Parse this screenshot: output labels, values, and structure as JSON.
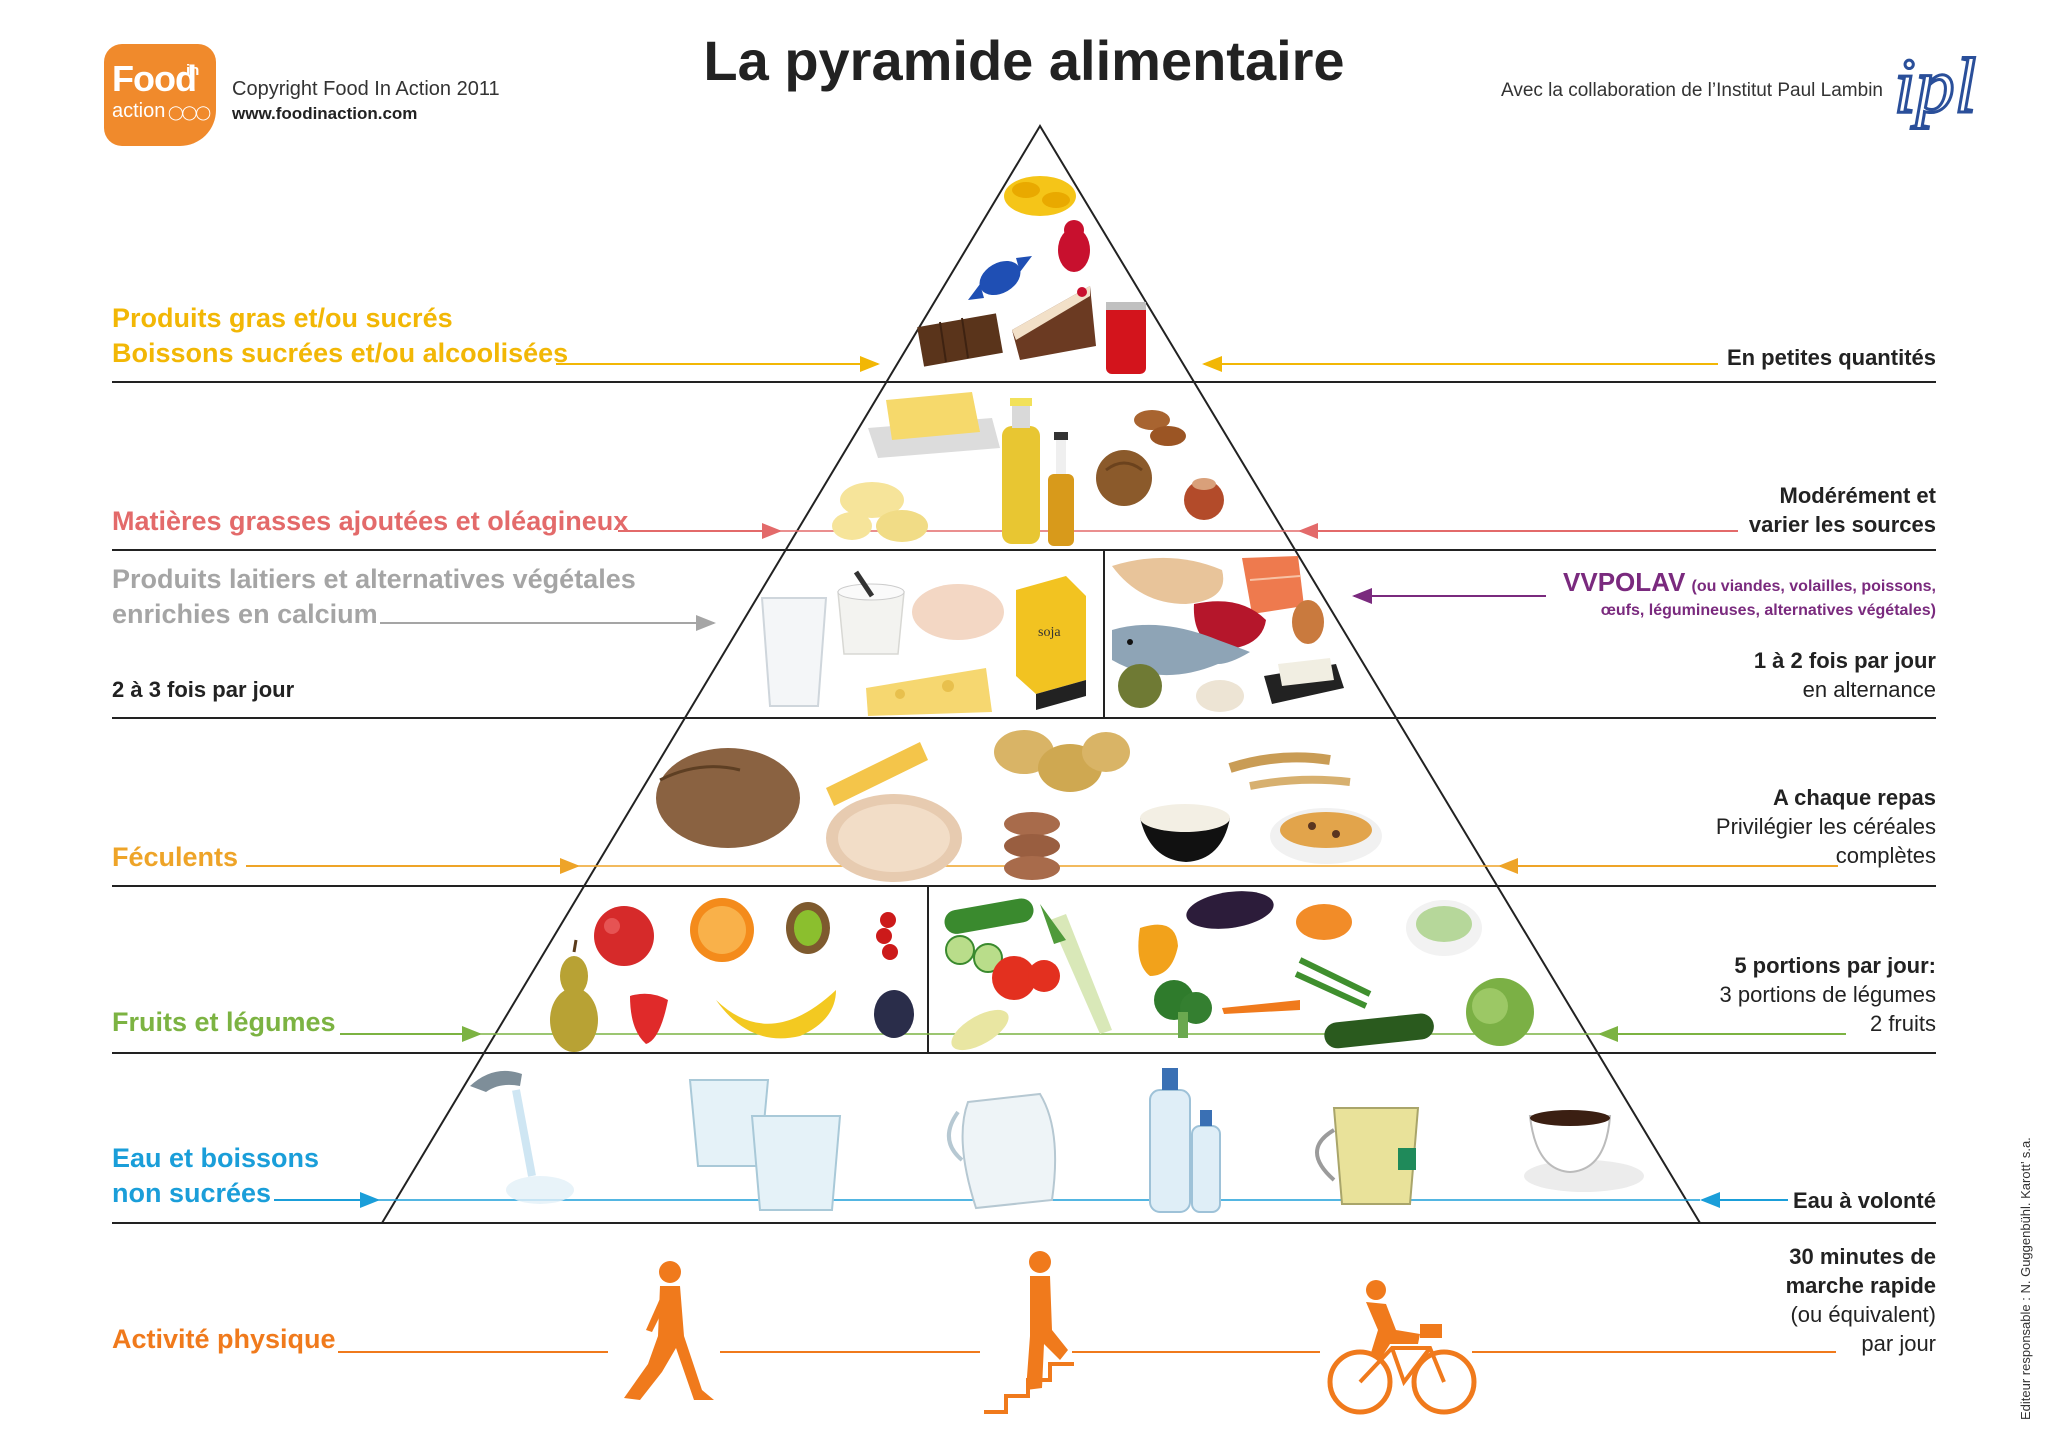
{
  "header": {
    "title": "La pyramide alimentaire",
    "copyright": "Copyright Food In Action 2011",
    "website": "www.foodinaction.com",
    "collaboration": "Avec la collaboration de l’Institut Paul Lambin"
  },
  "logos": {
    "food_in_action": {
      "word1": "Food",
      "word2": "in",
      "word3": "action",
      "color": "#f08a2c"
    },
    "ipl": {
      "text": "ipl",
      "color": "#2a4f9a"
    }
  },
  "tiers": [
    {
      "left_lines": [
        "Produits gras et/ou sucrés",
        "Boissons sucrées et/ou alcoolisées"
      ],
      "left_color": "#f2b705",
      "right_lines": [
        {
          "text": "En petites quantités",
          "bold": true
        }
      ],
      "foods": [
        "chips",
        "gummy-bear",
        "wrapped-candy",
        "chocolate",
        "cake-slice",
        "soda-can"
      ]
    },
    {
      "left_lines": [
        "Matières grasses ajoutées et oléagineux"
      ],
      "left_color": "#e36a6a",
      "right_lines": [
        {
          "text": "Modérément et",
          "bold": true
        },
        {
          "text": "varier les sources",
          "bold": true
        }
      ],
      "foods": [
        "butter",
        "oil-bottle",
        "vinegar-bottle",
        "almonds",
        "walnut",
        "hazelnut",
        "butter-curls"
      ]
    },
    {
      "left_lines": [
        "Produits laitiers et alternatives végétales",
        "enrichies en calcium"
      ],
      "left_color": "#a5a5a5",
      "left_extra": "2 à 3 fois par jour",
      "right_title": "VVPOLAV",
      "right_title_sub": "(ou viandes, volailles, poissons,",
      "right_title_sub2": "œufs, légumineuses, alternatives végétales)",
      "right_title_color": "#7a2a7e",
      "right_lines": [
        {
          "text": "1 à 2 fois par jour",
          "bold": true
        },
        {
          "text": "en alternance",
          "bold": false
        }
      ],
      "foods": [
        "milk-glass",
        "yogurt",
        "cheese",
        "soy-carton",
        "chicken",
        "salmon",
        "steak",
        "fish",
        "egg",
        "lentils",
        "beans",
        "tofu"
      ],
      "soja_label": "soja"
    },
    {
      "left_lines": [
        "Féculents"
      ],
      "left_color": "#eea428",
      "right_lines": [
        {
          "text": "A chaque repas",
          "bold": true
        },
        {
          "text": "Privilégier les céréales",
          "bold": false
        },
        {
          "text": "complètes",
          "bold": false
        }
      ],
      "foods": [
        "bread-loaf",
        "pasta",
        "potatoes",
        "grain-cakes",
        "rice-bowl",
        "wheat",
        "cereal-flakes"
      ]
    },
    {
      "left_lines": [
        "Fruits et légumes"
      ],
      "left_color": "#7cb342",
      "right_lines": [
        {
          "text": "5 portions par jour:",
          "bold": true
        },
        {
          "text": "3 portions de légumes",
          "bold": false
        },
        {
          "text": "2 fruits",
          "bold": false
        }
      ],
      "foods": [
        "apple",
        "orange",
        "kiwi",
        "redcurrant",
        "pear",
        "strawberry",
        "banana",
        "plum",
        "cucumber",
        "leek",
        "pepper",
        "eggplant",
        "tomato",
        "broccoli",
        "carrot",
        "beans",
        "zucchini",
        "lettuce",
        "soup"
      ]
    },
    {
      "left_lines": [
        "Eau et boissons",
        "non sucrées"
      ],
      "left_color": "#1a9ed9",
      "right_lines": [
        {
          "text": "Eau à volonté",
          "bold": true
        }
      ],
      "foods": [
        "tap-water",
        "water-glasses",
        "water-jug",
        "water-bottles",
        "tea-glass",
        "coffee-cup"
      ]
    }
  ],
  "activity": {
    "label": "Activité physique",
    "color": "#f07a1c",
    "right_lines": [
      {
        "text": "30 minutes de",
        "bold": true
      },
      {
        "text": "marche rapide",
        "bold": true
      },
      {
        "text": "(ou équivalent)",
        "bold": false
      },
      {
        "text": "par jour",
        "bold": false
      }
    ],
    "icons": [
      "walking-person-icon",
      "stair-climber-icon",
      "cyclist-icon"
    ]
  },
  "editor": "Editeur responsable : N. Guggenbühl. Karott’ s.a."
}
